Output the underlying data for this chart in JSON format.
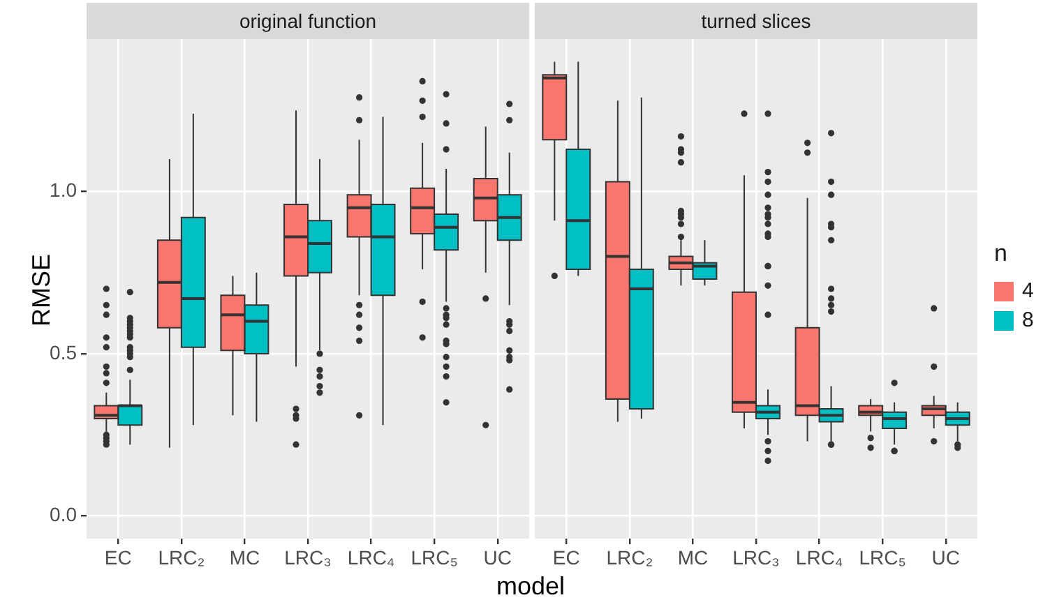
{
  "chart_data": [
    {
      "type": "box",
      "title": "original function",
      "ylabel": "RMSE",
      "xlabel": "model",
      "categories": [
        "EC",
        "LRC₂",
        "MC",
        "LRC₃",
        "LRC₄",
        "LRC₅",
        "UC"
      ],
      "ylim": [
        -0.07,
        1.47
      ],
      "yticks": [
        {
          "value": 0,
          "label": "0.0"
        },
        {
          "value": 0.5,
          "label": "0.5"
        },
        {
          "value": 1,
          "label": "1.0"
        }
      ],
      "grid": true,
      "series": [
        {
          "color": "#f8766d",
          "boxes": [
            {
              "low": 0.26,
              "q1": 0.3,
              "median": 0.31,
              "q3": 0.34,
              "high": 0.38,
              "outliers": [
                0.7,
                0.65,
                0.62,
                0.55,
                0.52,
                0.46,
                0.44,
                0.41,
                0.25,
                0.24,
                0.23,
                0.22
              ]
            },
            {
              "low": 0.21,
              "q1": 0.58,
              "median": 0.72,
              "q3": 0.85,
              "high": 1.1
            },
            {
              "low": 0.31,
              "q1": 0.51,
              "median": 0.62,
              "q3": 0.68,
              "high": 0.74
            },
            {
              "low": 0.46,
              "q1": 0.74,
              "median": 0.86,
              "q3": 0.96,
              "high": 1.25,
              "outliers": [
                0.33,
                0.31,
                0.3,
                0.22
              ]
            },
            {
              "low": 0.68,
              "q1": 0.86,
              "median": 0.95,
              "q3": 0.99,
              "high": 1.16,
              "outliers": [
                1.29,
                1.22,
                0.65,
                0.62,
                0.58,
                0.54,
                0.31
              ]
            },
            {
              "low": 0.76,
              "q1": 0.87,
              "median": 0.95,
              "q3": 1.01,
              "high": 1.15,
              "outliers": [
                1.34,
                1.28,
                1.23,
                0.66,
                0.55
              ]
            },
            {
              "low": 0.75,
              "q1": 0.91,
              "median": 0.98,
              "q3": 1.04,
              "high": 1.2,
              "outliers": [
                0.67,
                0.28
              ]
            }
          ]
        },
        {
          "color": "#00bfc4",
          "boxes": [
            {
              "low": 0.22,
              "q1": 0.28,
              "median": 0.34,
              "q3": 0.34,
              "high": 0.42,
              "outliers": [
                0.69,
                0.61,
                0.6,
                0.59,
                0.58,
                0.57,
                0.56,
                0.55,
                0.52,
                0.51,
                0.5,
                0.49,
                0.45
              ]
            },
            {
              "low": 0.28,
              "q1": 0.52,
              "median": 0.67,
              "q3": 0.92,
              "high": 1.24
            },
            {
              "low": 0.29,
              "q1": 0.5,
              "median": 0.6,
              "q3": 0.65,
              "high": 0.75
            },
            {
              "low": 0.51,
              "q1": 0.75,
              "median": 0.84,
              "q3": 0.91,
              "high": 1.1,
              "outliers": [
                0.5,
                0.45,
                0.43,
                0.4,
                0.38
              ]
            },
            {
              "low": 0.28,
              "q1": 0.68,
              "median": 0.86,
              "q3": 0.96,
              "high": 1.23
            },
            {
              "low": 0.66,
              "q1": 0.82,
              "median": 0.89,
              "q3": 0.93,
              "high": 1.07,
              "outliers": [
                1.3,
                1.21,
                1.13,
                0.64,
                0.62,
                0.61,
                0.59,
                0.54,
                0.53,
                0.49,
                0.46,
                0.43,
                0.35
              ]
            },
            {
              "low": 0.65,
              "q1": 0.85,
              "median": 0.92,
              "q3": 0.99,
              "high": 1.12,
              "outliers": [
                1.27,
                1.22,
                0.6,
                0.59,
                0.57,
                0.51,
                0.49,
                0.48,
                0.39
              ]
            }
          ]
        }
      ]
    },
    {
      "type": "box",
      "title": "turned slices",
      "categories": [
        "EC",
        "LRC₂",
        "MC",
        "LRC₃",
        "LRC₄",
        "LRC₅",
        "UC"
      ],
      "ylim": [
        -0.07,
        1.47
      ],
      "yticks": [
        0,
        0.5,
        1
      ],
      "grid": true,
      "tick_labels": "x",
      "legend": "right",
      "legend_title": "n",
      "series": [
        {
          "name": "4",
          "color": "#f8766d",
          "boxes": [
            {
              "low": 0.91,
              "q1": 1.16,
              "median": 1.35,
              "q3": 1.36,
              "high": 1.4,
              "outliers": [
                0.74
              ]
            },
            {
              "low": 0.29,
              "q1": 0.36,
              "median": 0.8,
              "q3": 1.03,
              "high": 1.28
            },
            {
              "low": 0.71,
              "q1": 0.76,
              "median": 0.78,
              "q3": 0.8,
              "high": 0.85,
              "outliers": [
                1.17,
                1.13,
                1.12,
                1.09,
                0.94,
                0.93,
                0.92,
                0.9,
                0.86
              ]
            },
            {
              "low": 0.27,
              "q1": 0.32,
              "median": 0.35,
              "q3": 0.69,
              "high": 1.05,
              "outliers": [
                1.24
              ]
            },
            {
              "low": 0.23,
              "q1": 0.31,
              "median": 0.34,
              "q3": 0.58,
              "high": 0.98,
              "outliers": [
                1.15,
                1.12
              ]
            },
            {
              "low": 0.26,
              "q1": 0.31,
              "median": 0.32,
              "q3": 0.34,
              "high": 0.36,
              "outliers": [
                0.24,
                0.21
              ]
            },
            {
              "low": 0.27,
              "q1": 0.31,
              "median": 0.33,
              "q3": 0.34,
              "high": 0.37,
              "outliers": [
                0.64,
                0.46,
                0.23
              ]
            }
          ]
        },
        {
          "name": "8",
          "color": "#00bfc4",
          "boxes": [
            {
              "low": 0.74,
              "q1": 0.76,
              "median": 0.91,
              "q3": 1.13,
              "high": 1.4
            },
            {
              "low": 0.3,
              "q1": 0.33,
              "median": 0.7,
              "q3": 0.76,
              "high": 1.29
            },
            {
              "low": 0.71,
              "q1": 0.73,
              "median": 0.77,
              "q3": 0.78,
              "high": 0.85
            },
            {
              "low": 0.25,
              "q1": 0.3,
              "median": 0.32,
              "q3": 0.34,
              "high": 0.39,
              "outliers": [
                1.24,
                1.06,
                1.03,
                0.99,
                0.95,
                0.93,
                0.92,
                0.9,
                0.87,
                0.86,
                0.77,
                0.77,
                0.71,
                0.62,
                0.23,
                0.2,
                0.17
              ]
            },
            {
              "low": 0.23,
              "q1": 0.29,
              "median": 0.31,
              "q3": 0.33,
              "high": 0.4,
              "outliers": [
                1.18,
                1.03,
                0.99,
                0.9,
                0.89,
                0.85,
                0.7,
                0.67,
                0.65,
                0.63,
                0.22,
                0.22
              ]
            },
            {
              "low": 0.22,
              "q1": 0.27,
              "median": 0.3,
              "q3": 0.32,
              "high": 0.35,
              "outliers": [
                0.41,
                0.2,
                0.2
              ]
            },
            {
              "low": 0.23,
              "q1": 0.28,
              "median": 0.3,
              "q3": 0.32,
              "high": 0.35,
              "outliers": [
                0.22,
                0.21
              ]
            }
          ]
        }
      ]
    }
  ]
}
